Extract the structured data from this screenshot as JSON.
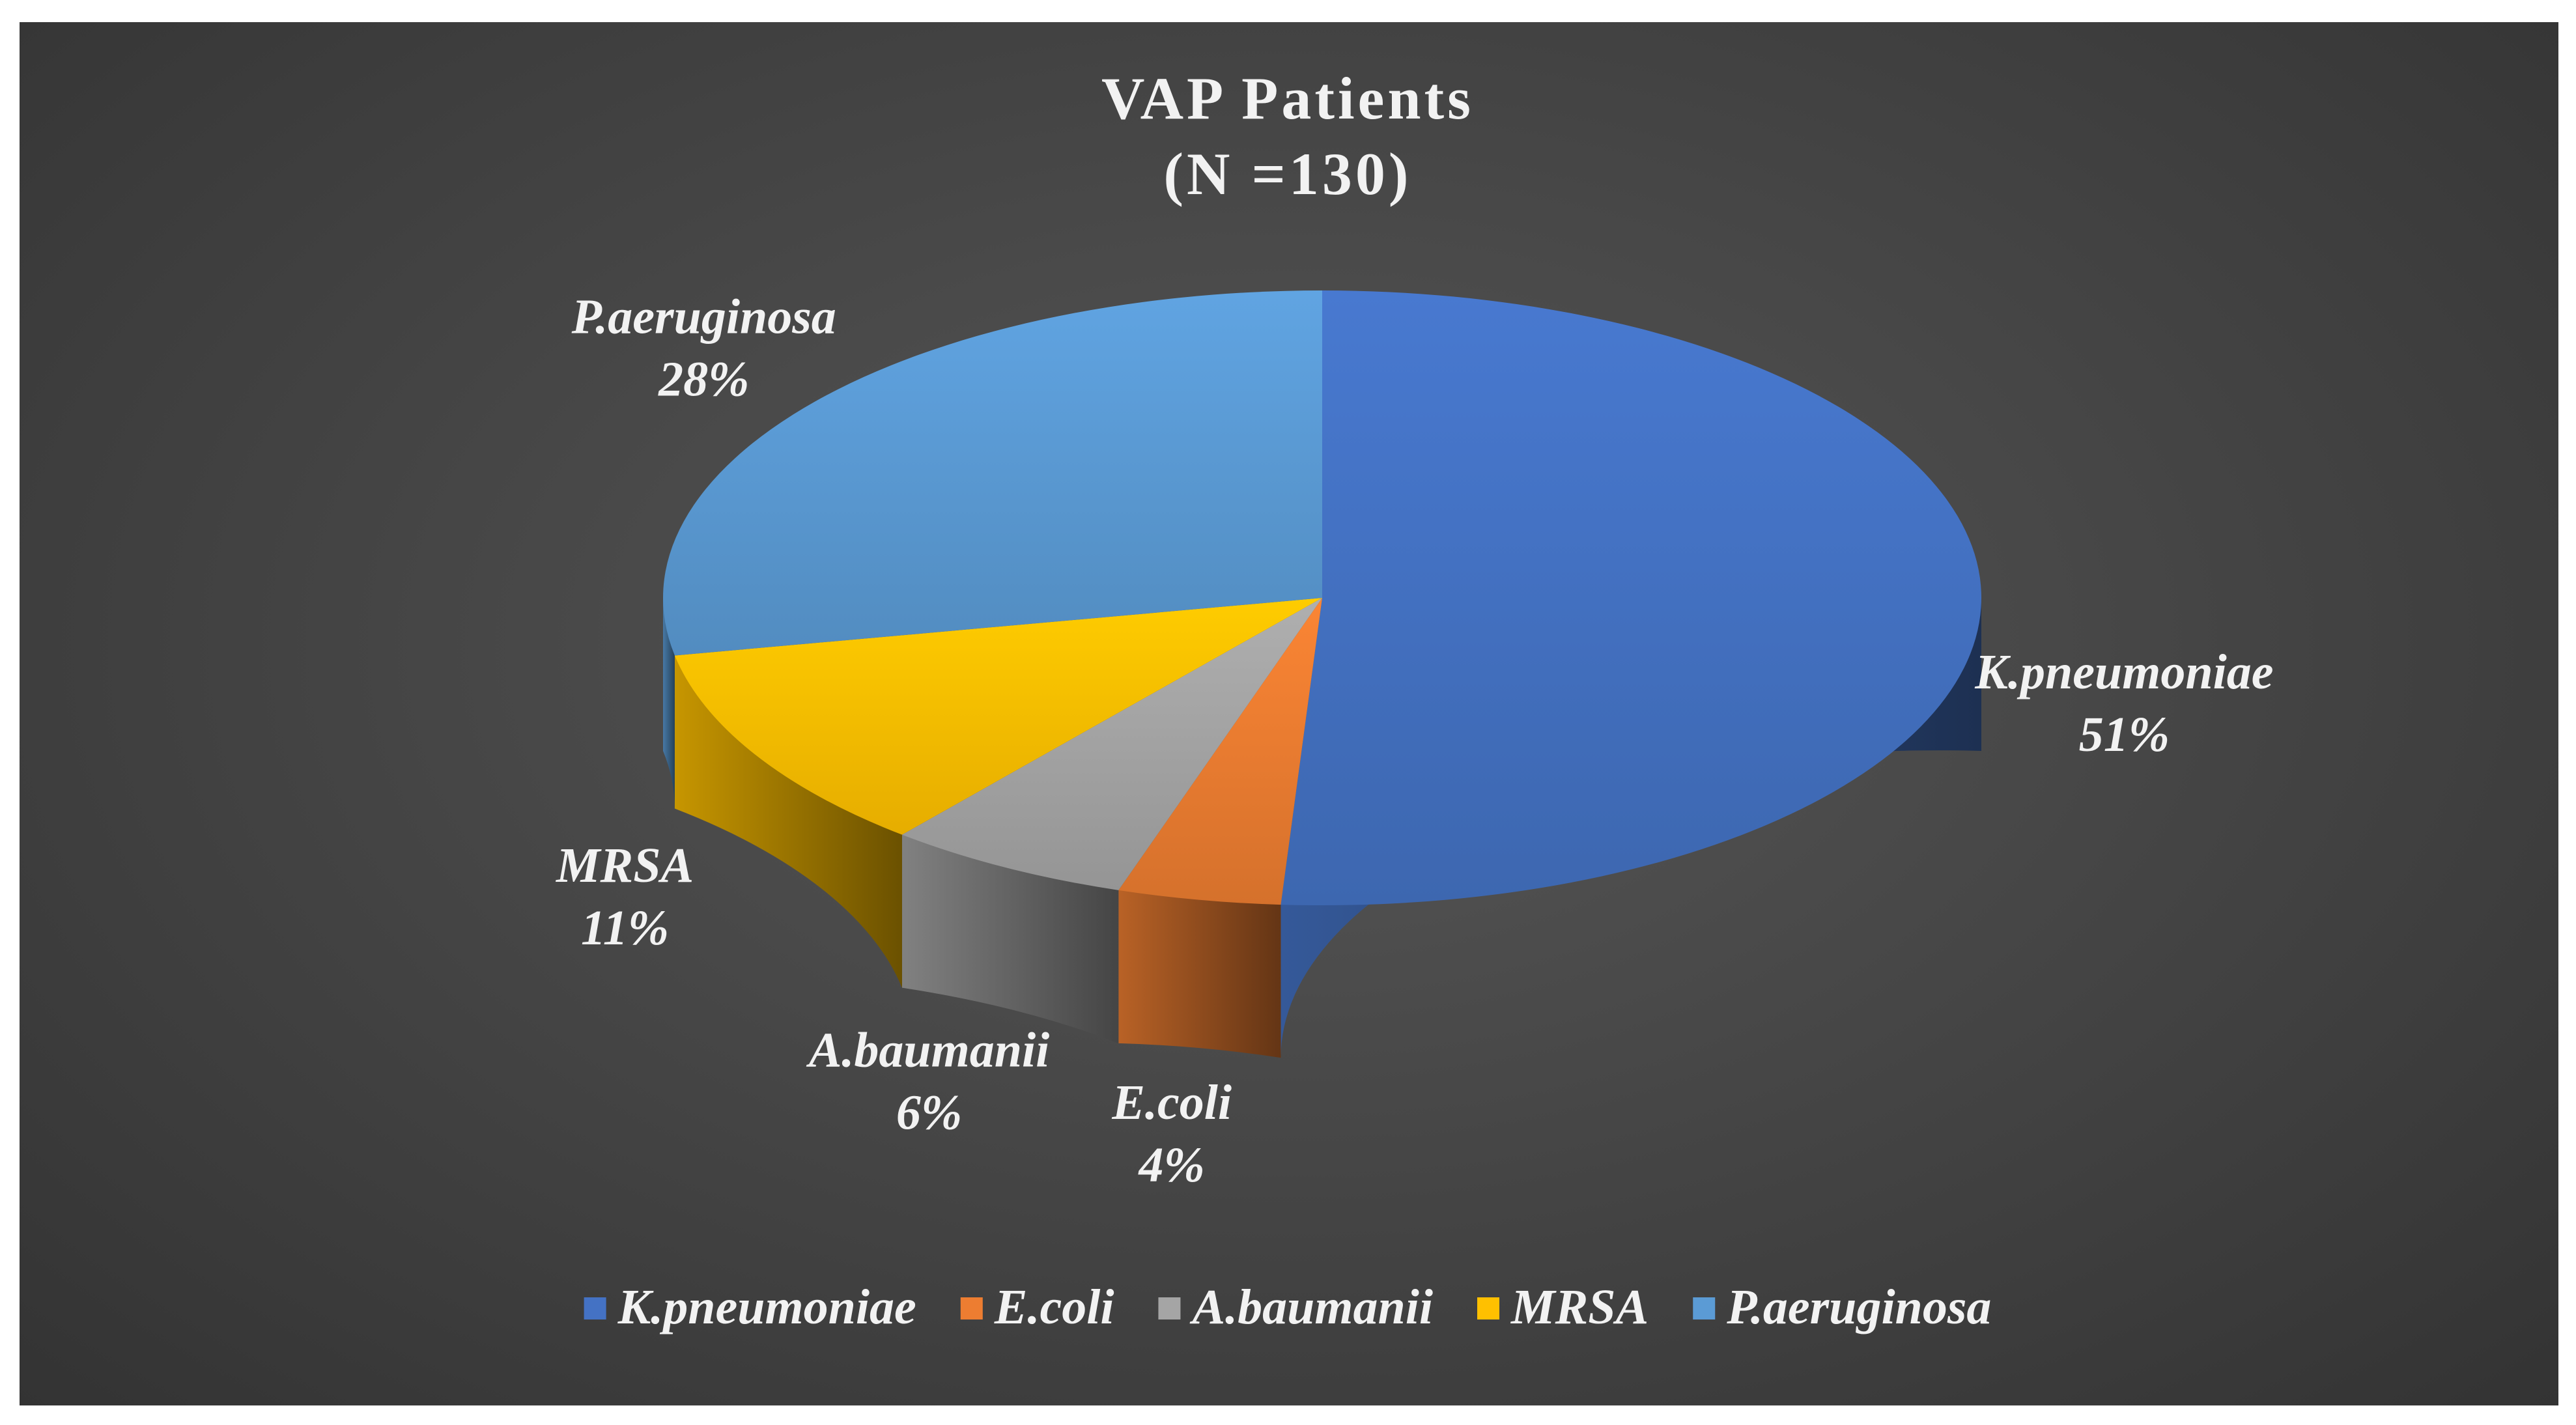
{
  "chart_data": {
    "type": "pie",
    "title": "VAP Patients",
    "subtitle": "(N =130)",
    "categories": [
      "K.pneumoniae",
      "E.coli",
      "A.baumanii",
      "MRSA",
      "P.aeruginosa"
    ],
    "values": [
      51,
      4,
      6,
      11,
      28
    ],
    "value_labels": [
      "51%",
      "4%",
      "6%",
      "11%",
      "28%"
    ],
    "colors": [
      "#4472C4",
      "#ED7D31",
      "#A5A5A5",
      "#FFC000",
      "#5B9BD5"
    ],
    "legend_position": "bottom",
    "style": "3d"
  }
}
